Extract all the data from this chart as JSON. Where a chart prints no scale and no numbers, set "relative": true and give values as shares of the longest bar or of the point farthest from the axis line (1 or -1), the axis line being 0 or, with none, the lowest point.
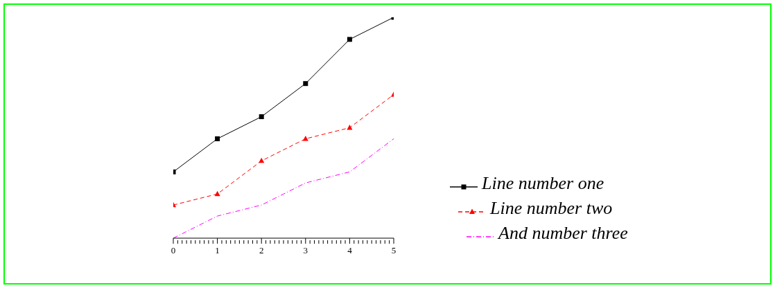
{
  "chart_data": {
    "type": "line",
    "relative": true,
    "x": [
      0,
      1,
      2,
      3,
      4,
      5
    ],
    "xlim": [
      0,
      5
    ],
    "xticks": [
      0,
      {
        "value": 0.1,
        "label": null
      },
      {
        "value": 0.2,
        "label": null
      },
      {
        "value": 0.3,
        "label": null
      },
      {
        "value": 0.4,
        "label": null
      },
      {
        "value": 0.5,
        "label": null
      },
      {
        "value": 0.6,
        "label": null
      },
      {
        "value": 0.7,
        "label": null
      },
      {
        "value": 0.8,
        "label": null
      },
      {
        "value": 0.9,
        "label": null
      },
      1,
      {
        "value": 1.1,
        "label": null
      },
      {
        "value": 1.2,
        "label": null
      },
      {
        "value": 1.3,
        "label": null
      },
      {
        "value": 1.4,
        "label": null
      },
      {
        "value": 1.5,
        "label": null
      },
      {
        "value": 1.6,
        "label": null
      },
      {
        "value": 1.7,
        "label": null
      },
      {
        "value": 1.8,
        "label": null
      },
      {
        "value": 1.9,
        "label": null
      },
      2,
      {
        "value": 2.1,
        "label": null
      },
      {
        "value": 2.2,
        "label": null
      },
      {
        "value": 2.3,
        "label": null
      },
      {
        "value": 2.4,
        "label": null
      },
      {
        "value": 2.5,
        "label": null
      },
      {
        "value": 2.6,
        "label": null
      },
      {
        "value": 2.7,
        "label": null
      },
      {
        "value": 2.8,
        "label": null
      },
      {
        "value": 2.9,
        "label": null
      },
      3,
      {
        "value": 3.1,
        "label": null
      },
      {
        "value": 3.2,
        "label": null
      },
      {
        "value": 3.3,
        "label": null
      },
      {
        "value": 3.4,
        "label": null
      },
      {
        "value": 3.5,
        "label": null
      },
      {
        "value": 3.6,
        "label": null
      },
      {
        "value": 3.7,
        "label": null
      },
      {
        "value": 3.8,
        "label": null
      },
      {
        "value": 3.9,
        "label": null
      },
      4,
      {
        "value": 4.1,
        "label": null
      },
      {
        "value": 4.2,
        "label": null
      },
      {
        "value": 4.3,
        "label": null
      },
      {
        "value": 4.4,
        "label": null
      },
      {
        "value": 4.5,
        "label": null
      },
      {
        "value": 4.6,
        "label": null
      },
      {
        "value": 4.7,
        "label": null
      },
      {
        "value": 4.8,
        "label": null
      },
      {
        "value": 4.9,
        "label": null
      },
      5
    ],
    "tick_labels": "x",
    "grid": false,
    "legend": "bottom right",
    "series": [
      {
        "name": "Line number one",
        "color": "#000000",
        "marker": "square",
        "line_style": "solid",
        "values": [
          0.3,
          0.45,
          0.55,
          0.7,
          0.9,
          1
        ]
      },
      {
        "name": "Line number two",
        "color": "#ff0000",
        "marker": "triangle",
        "line_style": "dashed",
        "values": [
          0.15,
          0.2,
          0.35,
          0.45,
          0.5,
          0.65
        ]
      },
      {
        "name": "And number three",
        "color": "#ff00ff",
        "marker": "none",
        "line_style": "dotted",
        "values": [
          0,
          0.1,
          0.15,
          0.25,
          0.3,
          0.45
        ]
      }
    ]
  }
}
